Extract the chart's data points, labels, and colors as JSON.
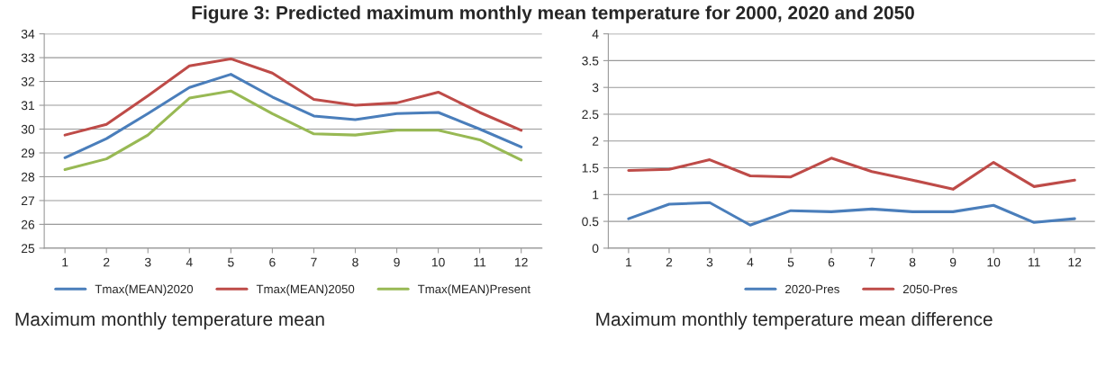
{
  "chart_data": [
    {
      "type": "line",
      "title": "Figure 3: Predicted maximum monthly mean temperature for 2000, 2020 and 2050",
      "categories": [
        "1",
        "2",
        "3",
        "4",
        "5",
        "6",
        "7",
        "8",
        "9",
        "10",
        "11",
        "12"
      ],
      "series": [
        {
          "name": "Tmax(MEAN)2020",
          "color": "#4a7ebb",
          "values": [
            28.8,
            29.6,
            30.65,
            31.75,
            32.3,
            31.35,
            30.55,
            30.4,
            30.65,
            30.7,
            30.0,
            29.25
          ]
        },
        {
          "name": "Tmax(MEAN)2050",
          "color": "#be4b48",
          "values": [
            29.75,
            30.2,
            31.4,
            32.65,
            32.95,
            32.35,
            31.25,
            31.0,
            31.1,
            31.55,
            30.7,
            29.95
          ]
        },
        {
          "name": "Tmax(MEAN)Present",
          "color": "#98b954",
          "values": [
            28.3,
            28.75,
            29.75,
            31.3,
            31.6,
            30.65,
            29.8,
            29.75,
            29.95,
            29.95,
            29.55,
            28.7
          ]
        }
      ],
      "ylim": [
        25,
        34
      ],
      "yticks": [
        25,
        26,
        27,
        28,
        29,
        30,
        31,
        32,
        33,
        34
      ],
      "grid": "y",
      "legend": "bottom",
      "annotations": [
        "Maximum monthly temperature mean"
      ]
    },
    {
      "type": "line",
      "categories": [
        "1",
        "2",
        "3",
        "4",
        "5",
        "6",
        "7",
        "8",
        "9",
        "10",
        "11",
        "12"
      ],
      "series": [
        {
          "name": "2020-Pres",
          "color": "#4a7ebb",
          "values": [
            0.55,
            0.82,
            0.85,
            0.43,
            0.7,
            0.68,
            0.73,
            0.68,
            0.68,
            0.8,
            0.48,
            0.55
          ]
        },
        {
          "name": "2050-Pres",
          "color": "#be4b48",
          "values": [
            1.45,
            1.47,
            1.65,
            1.35,
            1.33,
            1.68,
            1.43,
            1.27,
            1.1,
            1.6,
            1.15,
            1.27
          ]
        }
      ],
      "ylim": [
        0,
        4
      ],
      "yticks": [
        0,
        0.5,
        1,
        1.5,
        2,
        2.5,
        3,
        3.5,
        4
      ],
      "grid": "y",
      "legend": "bottom",
      "annotations": [
        "Maximum monthly temperature mean difference"
      ]
    }
  ]
}
